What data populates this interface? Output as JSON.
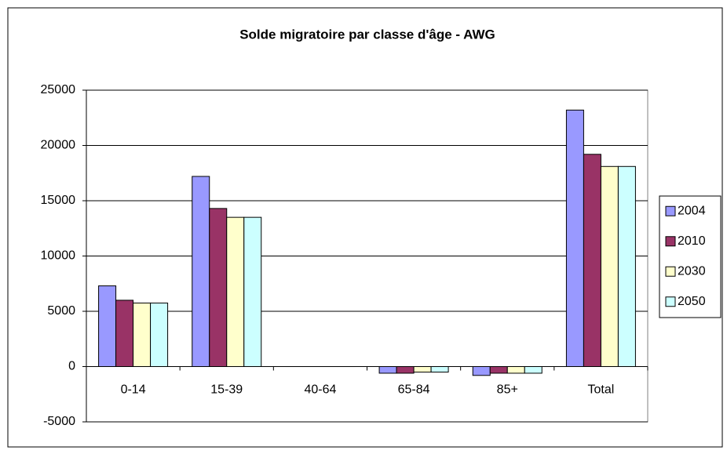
{
  "chart_data": {
    "type": "bar",
    "title": "Solde migratoire par classe d'âge - AWG",
    "categories": [
      "0-14",
      "15-39",
      "40-64",
      "65-84",
      "85+",
      "Total"
    ],
    "series": [
      {
        "name": "2004",
        "color": "#9999ff",
        "values": [
          7300,
          17200,
          0,
          -600,
          -800,
          23200
        ]
      },
      {
        "name": "2010",
        "color": "#993366",
        "values": [
          6000,
          14300,
          0,
          -600,
          -600,
          19200
        ]
      },
      {
        "name": "2030",
        "color": "#ffffcc",
        "values": [
          5750,
          13500,
          0,
          -500,
          -600,
          18100
        ]
      },
      {
        "name": "2050",
        "color": "#ccffff",
        "values": [
          5750,
          13500,
          0,
          -500,
          -600,
          18100
        ]
      }
    ],
    "ylim": [
      -5000,
      25000
    ],
    "yticks": [
      -5000,
      0,
      5000,
      10000,
      15000,
      20000,
      25000
    ],
    "grid": true,
    "legend": "right"
  }
}
